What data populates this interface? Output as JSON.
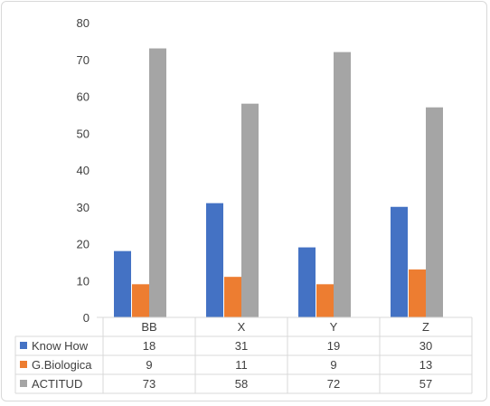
{
  "chart_data": {
    "type": "bar",
    "title": "",
    "xlabel": "",
    "ylabel": "",
    "categories": [
      "BB",
      "X",
      "Y",
      "Z"
    ],
    "series": [
      {
        "name": "Know How",
        "values": [
          18,
          31,
          19,
          30
        ],
        "color": "#4472c4"
      },
      {
        "name": "G.Biologica",
        "values": [
          9,
          11,
          9,
          13
        ],
        "color": "#ed7d31"
      },
      {
        "name": "ACTITUD",
        "values": [
          73,
          58,
          72,
          57
        ],
        "color": "#a5a5a5"
      }
    ],
    "ylim": [
      0,
      80
    ],
    "yticks": [
      0,
      10,
      20,
      30,
      40,
      50,
      60,
      70,
      80
    ],
    "grid": false,
    "legend": "data-table",
    "data_table": true
  }
}
